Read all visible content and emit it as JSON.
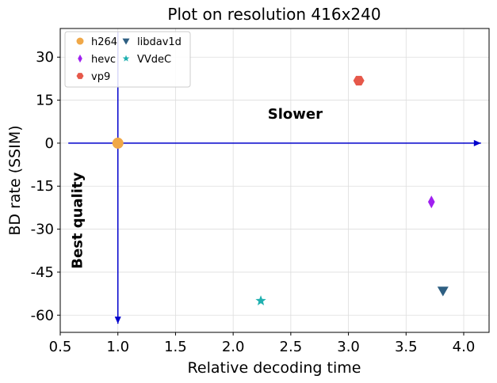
{
  "chart_data": {
    "type": "scatter",
    "title": "Plot on resolution 416x240",
    "xlabel": "Relative decoding time",
    "ylabel": "BD rate (SSIM)",
    "xlim": [
      0.5,
      4.22
    ],
    "ylim": [
      -66,
      40
    ],
    "xticks": [
      0.5,
      1.0,
      1.5,
      2.0,
      2.5,
      3.0,
      3.5,
      4.0
    ],
    "xtick_labels": [
      "0.5",
      "1.0",
      "1.5",
      "2.0",
      "2.5",
      "3.0",
      "3.5",
      "4.0"
    ],
    "yticks": [
      30,
      15,
      0,
      -15,
      -30,
      -45,
      -60
    ],
    "ytick_labels": [
      "30",
      "15",
      "0",
      "-15",
      "-30",
      "-45",
      "-60"
    ],
    "grid": true,
    "legend_position": "top-left",
    "series": [
      {
        "name": "h264",
        "marker": "circle",
        "color": "#f0a848",
        "x": 1.0,
        "y": 0
      },
      {
        "name": "hevc",
        "marker": "diamond",
        "color": "#a020f0",
        "x": 3.72,
        "y": -20.5
      },
      {
        "name": "vp9",
        "marker": "hexagon",
        "color": "#e6584a",
        "x": 3.09,
        "y": 21.8
      },
      {
        "name": "libdav1d",
        "marker": "triangle-down",
        "color": "#2e5f82",
        "x": 3.82,
        "y": -51.5
      },
      {
        "name": "VVdeC",
        "marker": "star",
        "color": "#20b0b0",
        "x": 2.24,
        "y": -55
      }
    ],
    "annotations": [
      {
        "text": "Slower",
        "x": 2.3,
        "y": 8.5,
        "rotation": 0
      },
      {
        "text": "Best quality",
        "x": 0.69,
        "y": -27,
        "rotation": -90
      }
    ],
    "arrows": [
      {
        "name": "horizontal-arrow",
        "from": [
          0.57,
          0
        ],
        "to": [
          4.15,
          0
        ],
        "color": "#0000cc"
      },
      {
        "name": "vertical-arrow",
        "from": [
          1.0,
          39
        ],
        "to": [
          1.0,
          -63
        ],
        "color": "#0000cc"
      }
    ]
  }
}
